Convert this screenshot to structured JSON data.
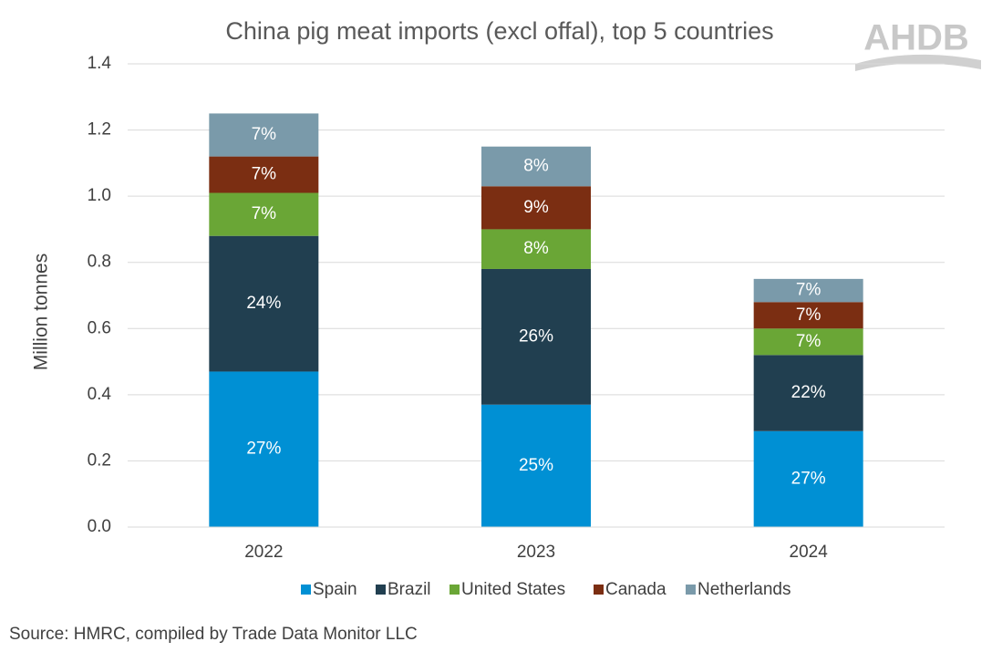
{
  "chart_data": {
    "type": "stacked_bar",
    "title": "China pig meat imports (excl offal), top 5 countries",
    "y_label": "Million tonnes",
    "source": "Source: HMRC, compiled by Trade Data Monitor LLC",
    "logo": "AHDB",
    "categories": [
      "2022",
      "2023",
      "2024"
    ],
    "series": [
      {
        "name": "Spain",
        "color": "#0090d4",
        "values": [
          0.47,
          0.37,
          0.29
        ],
        "share_labels": [
          "27%",
          "25%",
          "27%"
        ]
      },
      {
        "name": "Brazil",
        "color": "#213f50",
        "values": [
          0.41,
          0.41,
          0.23
        ],
        "share_labels": [
          "24%",
          "26%",
          "22%"
        ]
      },
      {
        "name": "United States",
        "color": "#6aa636",
        "values": [
          0.13,
          0.12,
          0.08
        ],
        "share_labels": [
          "7%",
          "8%",
          "7%"
        ]
      },
      {
        "name": "Canada",
        "color": "#7b2e12",
        "values": [
          0.11,
          0.13,
          0.08
        ],
        "share_labels": [
          "7%",
          "9%",
          "7%"
        ]
      },
      {
        "name": "Netherlands",
        "color": "#7a9aaa",
        "values": [
          0.13,
          0.12,
          0.07
        ],
        "share_labels": [
          "7%",
          "8%",
          "7%"
        ]
      }
    ],
    "ylim": [
      0,
      1.4
    ],
    "yticks": [
      {
        "value": 0,
        "label": "0.0"
      },
      0.2,
      0.4,
      0.6,
      0.8,
      {
        "value": 1,
        "label": "1.0"
      },
      1.2,
      1.4
    ],
    "grid": true,
    "legend": "bottom"
  }
}
